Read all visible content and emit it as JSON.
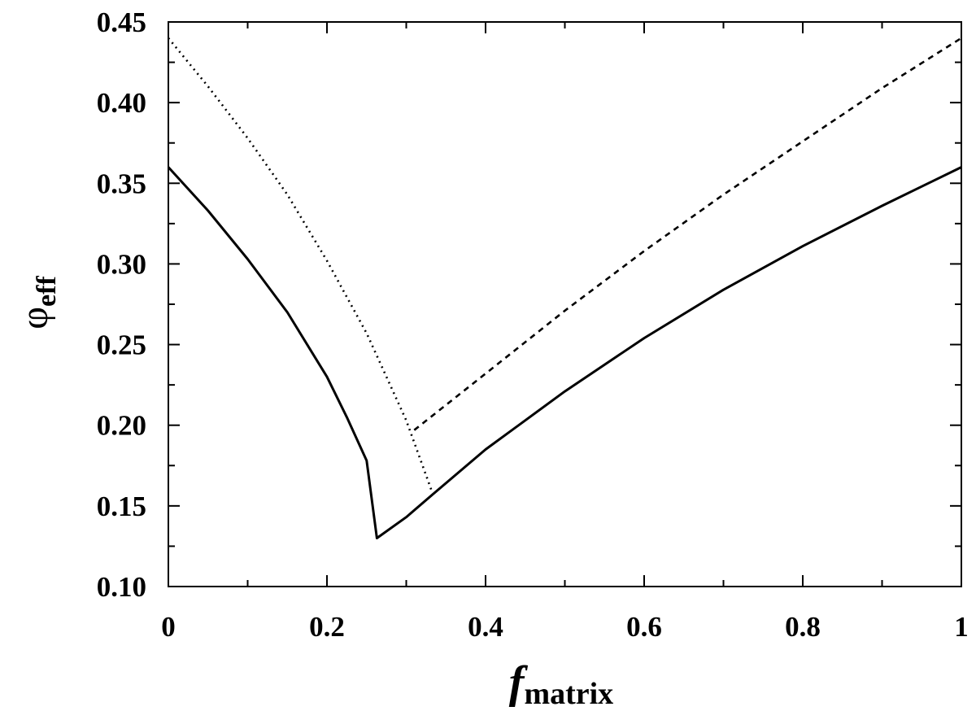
{
  "chart_data": {
    "type": "line",
    "title": "",
    "xlabel": {
      "main": "f",
      "sub": "matrix"
    },
    "ylabel": {
      "main": "φ",
      "sub": "eff"
    },
    "xlim": [
      0,
      1
    ],
    "ylim": [
      0.1,
      0.45
    ],
    "x_ticks": [
      {
        "value": 0,
        "label": "0"
      },
      {
        "value": 0.2,
        "label": "0.2"
      },
      {
        "value": 0.4,
        "label": "0.4"
      },
      {
        "value": 0.6,
        "label": "0.6"
      },
      {
        "value": 0.8,
        "label": "0.8"
      },
      {
        "value": 1,
        "label": "1"
      }
    ],
    "x_minor_ticks": [
      0.1,
      0.3,
      0.5,
      0.7,
      0.9
    ],
    "y_ticks": [
      {
        "value": 0.1,
        "label": "0.10"
      },
      {
        "value": 0.15,
        "label": "0.15"
      },
      {
        "value": 0.2,
        "label": "0.20"
      },
      {
        "value": 0.25,
        "label": "0.25"
      },
      {
        "value": 0.3,
        "label": "0.30"
      },
      {
        "value": 0.35,
        "label": "0.35"
      },
      {
        "value": 0.4,
        "label": "0.40"
      },
      {
        "value": 0.45,
        "label": "0.45"
      }
    ],
    "y_minor_ticks": [
      0.125,
      0.175,
      0.225,
      0.275,
      0.325,
      0.375,
      0.425
    ],
    "grid": false,
    "legend": "none",
    "series": [
      {
        "style": "solid",
        "color": "#000000",
        "x": [
          0,
          0.05,
          0.1,
          0.15,
          0.2,
          0.225,
          0.25,
          0.263,
          0.3,
          0.333,
          0.4,
          0.5,
          0.6,
          0.7,
          0.8,
          0.9,
          1.0
        ],
        "y": [
          0.36,
          0.333,
          0.303,
          0.27,
          0.23,
          0.205,
          0.178,
          0.13,
          0.143,
          0.157,
          0.185,
          0.221,
          0.254,
          0.284,
          0.311,
          0.336,
          0.36
        ]
      },
      {
        "style": "dotted",
        "color": "#000000",
        "x": [
          0,
          0.05,
          0.1,
          0.15,
          0.2,
          0.25,
          0.3,
          0.333
        ],
        "y": [
          0.44,
          0.41,
          0.378,
          0.343,
          0.302,
          0.257,
          0.203,
          0.158
        ]
      },
      {
        "style": "dashed",
        "color": "#000000",
        "x": [
          0.31,
          0.4,
          0.5,
          0.6,
          0.7,
          0.8,
          0.9,
          1.0
        ],
        "y": [
          0.197,
          0.232,
          0.271,
          0.308,
          0.343,
          0.376,
          0.409,
          0.44
        ]
      }
    ]
  }
}
